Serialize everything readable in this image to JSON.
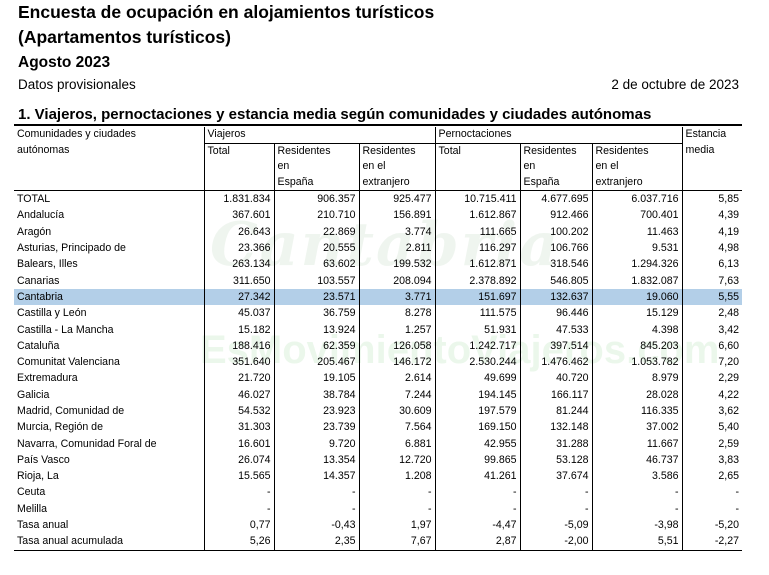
{
  "header": {
    "title_line1": "Encuesta de ocupación en alojamientos turísticos",
    "title_line2": "(Apartamentos turísticos)",
    "period": "Agosto 2023",
    "status": "Datos provisionales",
    "date": "2 de octubre de 2023"
  },
  "section_title": "1. Viajeros, pernoctaciones y estancia media según comunidades y ciudades autónomas",
  "columns": {
    "region_line1": "Comunidades y ciudades",
    "region_line2": "autónomas",
    "viajeros": "Viajeros",
    "pernoctaciones": "Pernoctaciones",
    "estancia_line1": "Estancia",
    "estancia_line2": "media",
    "total": "Total",
    "res_es_1": "Residentes",
    "res_es_2": "en",
    "res_es_3": "España",
    "res_ex_1": "Residentes",
    "res_ex_2": "en el",
    "res_ex_3": "extranjero"
  },
  "rows": [
    {
      "name": "TOTAL",
      "v": [
        "1.831.834",
        "906.357",
        "925.477",
        "10.715.411",
        "4.677.695",
        "6.037.716",
        "5,85"
      ]
    },
    {
      "name": "Andalucía",
      "v": [
        "367.601",
        "210.710",
        "156.891",
        "1.612.867",
        "912.466",
        "700.401",
        "4,39"
      ]
    },
    {
      "name": "Aragón",
      "v": [
        "26.643",
        "22.869",
        "3.774",
        "111.665",
        "100.202",
        "11.463",
        "4,19"
      ]
    },
    {
      "name": "Asturias, Principado de",
      "v": [
        "23.366",
        "20.555",
        "2.811",
        "116.297",
        "106.766",
        "9.531",
        "4,98"
      ]
    },
    {
      "name": "Balears, Illes",
      "v": [
        "263.134",
        "63.602",
        "199.532",
        "1.612.871",
        "318.546",
        "1.294.326",
        "6,13"
      ]
    },
    {
      "name": "Canarias",
      "v": [
        "311.650",
        "103.557",
        "208.094",
        "2.378.892",
        "546.805",
        "1.832.087",
        "7,63"
      ]
    },
    {
      "name": "Cantabria",
      "v": [
        "27.342",
        "23.571",
        "3.771",
        "151.697",
        "132.637",
        "19.060",
        "5,55"
      ]
    },
    {
      "name": "Castilla y León",
      "v": [
        "45.037",
        "36.759",
        "8.278",
        "111.575",
        "96.446",
        "15.129",
        "2,48"
      ]
    },
    {
      "name": "Castilla  - La Mancha",
      "v": [
        "15.182",
        "13.924",
        "1.257",
        "51.931",
        "47.533",
        "4.398",
        "3,42"
      ]
    },
    {
      "name": "Cataluña",
      "v": [
        "188.416",
        "62.359",
        "126.058",
        "1.242.717",
        "397.514",
        "845.203",
        "6,60"
      ]
    },
    {
      "name": "Comunitat Valenciana",
      "v": [
        "351.640",
        "205.467",
        "146.172",
        "2.530.244",
        "1.476.462",
        "1.053.782",
        "7,20"
      ]
    },
    {
      "name": "Extremadura",
      "v": [
        "21.720",
        "19.105",
        "2.614",
        "49.699",
        "40.720",
        "8.979",
        "2,29"
      ]
    },
    {
      "name": "Galicia",
      "v": [
        "46.027",
        "38.784",
        "7.244",
        "194.145",
        "166.117",
        "28.028",
        "4,22"
      ]
    },
    {
      "name": "Madrid, Comunidad de",
      "v": [
        "54.532",
        "23.923",
        "30.609",
        "197.579",
        "81.244",
        "116.335",
        "3,62"
      ]
    },
    {
      "name": "Murcia, Región de",
      "v": [
        "31.303",
        "23.739",
        "7.564",
        "169.150",
        "132.148",
        "37.002",
        "5,40"
      ]
    },
    {
      "name": "Navarra, Comunidad Foral de",
      "v": [
        "16.601",
        "9.720",
        "6.881",
        "42.955",
        "31.288",
        "11.667",
        "2,59"
      ]
    },
    {
      "name": "País Vasco",
      "v": [
        "26.074",
        "13.354",
        "12.720",
        "99.865",
        "53.128",
        "46.737",
        "3,83"
      ]
    },
    {
      "name": "Rioja, La",
      "v": [
        "15.565",
        "14.357",
        "1.208",
        "41.261",
        "37.674",
        "3.586",
        "2,65"
      ]
    },
    {
      "name": "Ceuta",
      "v": [
        "-",
        "-",
        "-",
        "-",
        "-",
        "-",
        "-"
      ]
    },
    {
      "name": "Melilla",
      "v": [
        "-",
        "-",
        "-",
        "-",
        "-",
        "-",
        "-"
      ]
    },
    {
      "name": "Tasa anual",
      "v": [
        "0,77",
        "-0,43",
        "1,97",
        "-4,47",
        "-5,09",
        "-3,98",
        "-5,20"
      ]
    },
    {
      "name": "Tasa anual acumulada",
      "v": [
        "5,26",
        "2,35",
        "7,67",
        "2,87",
        "-2,00",
        "5,51",
        "-2,27"
      ]
    }
  ],
  "highlight_row": "Cantabria",
  "highlight_color": "#b3cfe8",
  "watermark": {
    "line1": "Cantabria",
    "line2": "EsMovimientoViajeros.com"
  }
}
